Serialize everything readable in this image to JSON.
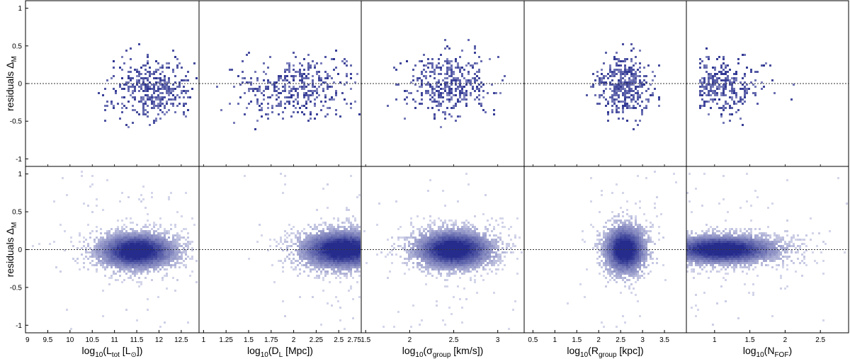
{
  "chart_data": {
    "type": "heatmap",
    "title": "",
    "description_rows": [
      "top",
      "bottom"
    ],
    "ylabel": {
      "main": "residuals Δ",
      "sub": "M"
    },
    "ylim": [
      -1.1,
      1.1
    ],
    "y_ticks": [
      1,
      0.5,
      0,
      -0.5,
      -1
    ],
    "y_tick_labels": [
      "1",
      "0.5",
      "0",
      "-0.5",
      "-1"
    ],
    "reference_line_y": 0,
    "colors": {
      "density_low": "#d4d6ea",
      "density_high": "#252c8c",
      "axis": "#000000",
      "refline": "#333333"
    },
    "panels": [
      {
        "id": "ltot",
        "xlabel": {
          "pre": "log",
          "sub1": "10",
          "mid": "(L",
          "sub2": "tot",
          "post": " [L",
          "sub3": "⊙",
          "end": "])"
        },
        "xlim": [
          9,
          12.9
        ],
        "x_ticks": [
          9,
          9.5,
          10,
          10.5,
          11,
          11.5,
          12,
          12.5
        ],
        "x_tick_labels": [
          "9",
          "9.5",
          "10",
          "10.5",
          "11",
          "11.5",
          "12",
          "12.5"
        ],
        "density": {
          "center_x": 11.5,
          "center_y": -0.02,
          "spread_x": 0.55,
          "spread_y": 0.15
        },
        "sparse": {
          "center_x": 11.9,
          "center_y": -0.08,
          "spread_x": 0.45,
          "spread_y": 0.2,
          "x_min": 10.3
        }
      },
      {
        "id": "dl",
        "xlabel": {
          "pre": "log",
          "sub1": "10",
          "mid": "(D",
          "sub2": "L",
          "post": " [Mpc])",
          "sub3": "",
          "end": ""
        },
        "xlim": [
          0.95,
          2.75
        ],
        "x_ticks": [
          1,
          1.25,
          1.5,
          1.75,
          2,
          2.25,
          2.5,
          2.75
        ],
        "x_tick_labels": [
          "1",
          "1.25",
          "1.5",
          "1.75",
          "2",
          "2.25",
          "2.5",
          "2.75"
        ],
        "density": {
          "center_x": 2.55,
          "center_y": 0.0,
          "spread_x": 0.3,
          "spread_y": 0.16
        },
        "sparse": {
          "center_x": 2.05,
          "center_y": -0.05,
          "spread_x": 0.35,
          "spread_y": 0.2,
          "x_min": 1.1
        }
      },
      {
        "id": "sigma",
        "xlabel": {
          "pre": "log",
          "sub1": "10",
          "mid": "(σ",
          "sub2": "group",
          "post": " [km/s])",
          "sub3": "",
          "end": ""
        },
        "xlim": [
          1.45,
          3.3
        ],
        "x_ticks": [
          1.5,
          2,
          2.5,
          3
        ],
        "x_tick_labels": [
          "1.5",
          "2",
          "2.5",
          "3"
        ],
        "density": {
          "center_x": 2.5,
          "center_y": 0.0,
          "spread_x": 0.28,
          "spread_y": 0.16
        },
        "sparse": {
          "center_x": 2.45,
          "center_y": -0.02,
          "spread_x": 0.25,
          "spread_y": 0.2,
          "x_min": 1.5
        }
      },
      {
        "id": "rgroup",
        "xlabel": {
          "pre": "log",
          "sub1": "10",
          "mid": "(R",
          "sub2": "group",
          "post": " [kpc])",
          "sub3": "",
          "end": ""
        },
        "xlim": [
          0.3,
          4.0
        ],
        "x_ticks": [
          0.5,
          1,
          1.5,
          2,
          2.5,
          3,
          3.5
        ],
        "x_tick_labels": [
          "0.5",
          "1",
          "1.5",
          "2",
          "2.5",
          "3",
          "3.5"
        ],
        "density": {
          "center_x": 2.6,
          "center_y": 0.0,
          "spread_x": 0.3,
          "spread_y": 0.2
        },
        "sparse": {
          "center_x": 2.6,
          "center_y": -0.02,
          "spread_x": 0.3,
          "spread_y": 0.2,
          "x_min": 1.6
        }
      },
      {
        "id": "nfof",
        "xlabel": {
          "pre": "log",
          "sub1": "10",
          "mid": "(N",
          "sub2": "FOF",
          "post": ")",
          "sub3": "",
          "end": ""
        },
        "xlim": [
          0.6,
          2.9
        ],
        "x_ticks": [
          1,
          1.5,
          2,
          2.5
        ],
        "x_tick_labels": [
          "1",
          "1.5",
          "2",
          "2.5"
        ],
        "density": {
          "center_x": 1.1,
          "center_y": 0.0,
          "spread_x": 0.5,
          "spread_y": 0.12
        },
        "sparse": {
          "center_x": 1.0,
          "center_y": -0.02,
          "spread_x": 0.35,
          "spread_y": 0.18,
          "x_min": 0.78
        }
      }
    ]
  }
}
